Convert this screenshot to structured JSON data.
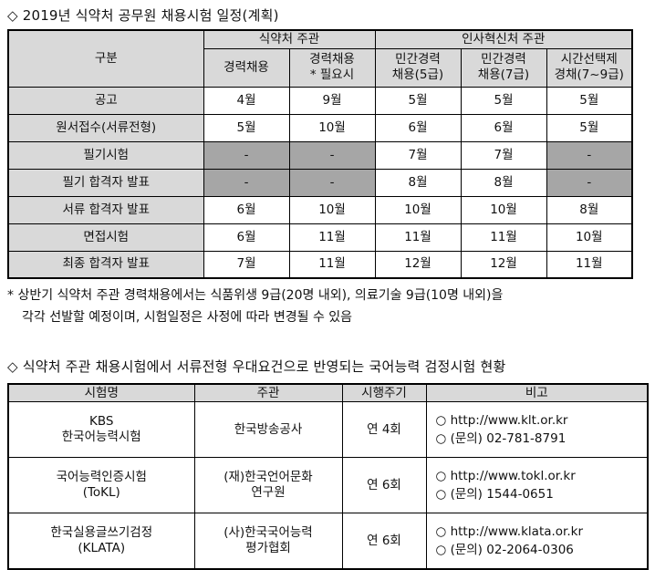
{
  "section1": {
    "title": "◇ 2019년 식약처 공무원 채용시험 일정(계획)",
    "table": {
      "header": {
        "category": "구분",
        "group_mfds": "식약처 주관",
        "group_mpm": "인사혁신처 주관",
        "col1": "경력채용",
        "col2_line1": "경력채용",
        "col2_line2": "* 필요시",
        "col3_line1": "민간경력",
        "col3_line2": "채용(5급)",
        "col4_line1": "민간경력",
        "col4_line2": "채용(7급)",
        "col5_line1": "시간선택제",
        "col5_line2": "경채(7~9급)"
      },
      "rows": [
        {
          "label": "공고",
          "c1": "4월",
          "c2": "9월",
          "c3": "5월",
          "c4": "5월",
          "c5": "5월"
        },
        {
          "label": "원서접수(서류전형)",
          "c1": "5월",
          "c2": "10월",
          "c3": "6월",
          "c4": "6월",
          "c5": "5월"
        },
        {
          "label": "필기시험",
          "c1": "-",
          "c2": "-",
          "c3": "7월",
          "c4": "7월",
          "c5": "-"
        },
        {
          "label": "필기 합격자 발표",
          "c1": "-",
          "c2": "-",
          "c3": "8월",
          "c4": "8월",
          "c5": "-"
        },
        {
          "label": "서류 합격자 발표",
          "c1": "6월",
          "c2": "10월",
          "c3": "10월",
          "c4": "10월",
          "c5": "8월"
        },
        {
          "label": "면접시험",
          "c1": "6월",
          "c2": "11월",
          "c3": "11월",
          "c4": "11월",
          "c5": "10월"
        },
        {
          "label": "최종 합격자 발표",
          "c1": "7월",
          "c2": "11월",
          "c3": "12월",
          "c4": "12월",
          "c5": "11월"
        }
      ]
    },
    "note_line1": "* 상반기 식약처 주관 경력채용에서는 식품위생 9급(20명 내외), 의료기술 9급(10명 내외)을",
    "note_line2": "각각 선발할 예정이며, 시험일정은 사정에 따라 변경될 수 있음"
  },
  "section2": {
    "title": "◇ 식약처 주관 채용시험에서 서류전형 우대요건으로 반영되는 국어능력 검정시험 현황",
    "table": {
      "header": {
        "name": "시험명",
        "org": "주관",
        "freq": "시행주기",
        "remarks": "비고"
      },
      "rows": [
        {
          "name_line1": "KBS",
          "name_line2": "한국어능력시험",
          "org_line1": "한국방송공사",
          "org_line2": "",
          "freq": "연 4회",
          "url": "○  http://www.klt.or.kr",
          "phone": "○  (문의) 02-781-8791"
        },
        {
          "name_line1": "국어능력인증시험",
          "name_line2": "(ToKL)",
          "org_line1": "(재)한국언어문화",
          "org_line2": "연구원",
          "freq": "연 6회",
          "url": "○  http://www.tokl.or.kr",
          "phone": "○  (문의) 1544-0651"
        },
        {
          "name_line1": "한국실용글쓰기검정",
          "name_line2": "(KLATA)",
          "org_line1": "(사)한국국어능력",
          "org_line2": "평가협회",
          "freq": "연 6회",
          "url": "○  http://www.klata.or.kr",
          "phone": "○  (문의) 02-2064-0306"
        }
      ]
    }
  }
}
